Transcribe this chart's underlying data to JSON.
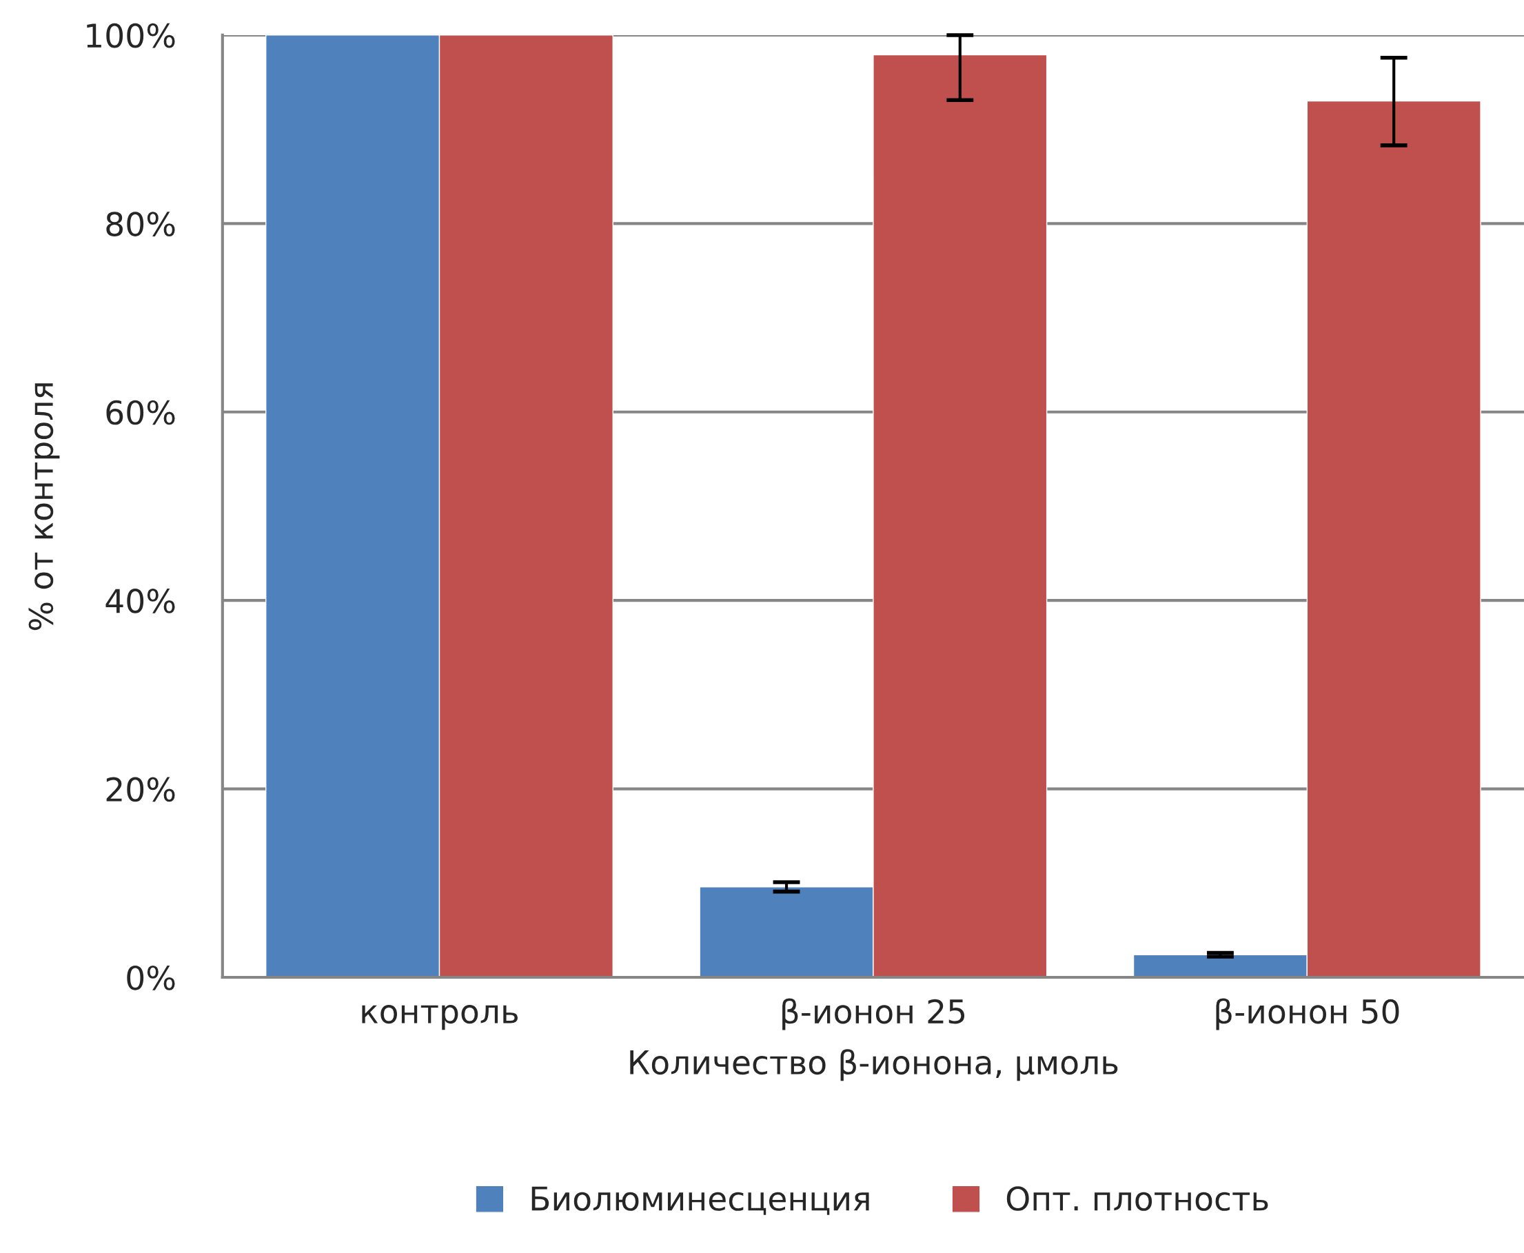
{
  "chart_data": {
    "type": "bar",
    "xlabel": "Количество β-ионона, μмоль",
    "ylabel": "% от контроля",
    "categories": [
      "контроль",
      "β-ионон 25",
      "β-ионон 50"
    ],
    "series": [
      {
        "name": "Биолюминесценция",
        "color": "#4f81bd",
        "values": [
          100,
          9.6,
          2.4
        ],
        "errors": [
          null,
          0.5,
          0.2
        ]
      },
      {
        "name": "Опт. плотность",
        "color": "#c0504d",
        "values": [
          100,
          97.9,
          93.0
        ],
        "errors": [
          null,
          [
            93.1,
            100
          ],
          [
            88.3,
            97.6
          ]
        ]
      }
    ],
    "ylim": [
      0,
      100
    ],
    "yticks": [
      {
        "value": 0,
        "label": "0%"
      },
      {
        "value": 20,
        "label": "20%"
      },
      {
        "value": 40,
        "label": "40%"
      },
      {
        "value": 60,
        "label": "60%"
      },
      {
        "value": 80,
        "label": "80%"
      },
      {
        "value": 100,
        "label": "100%"
      }
    ],
    "grid": "y",
    "legend": "bottom"
  }
}
